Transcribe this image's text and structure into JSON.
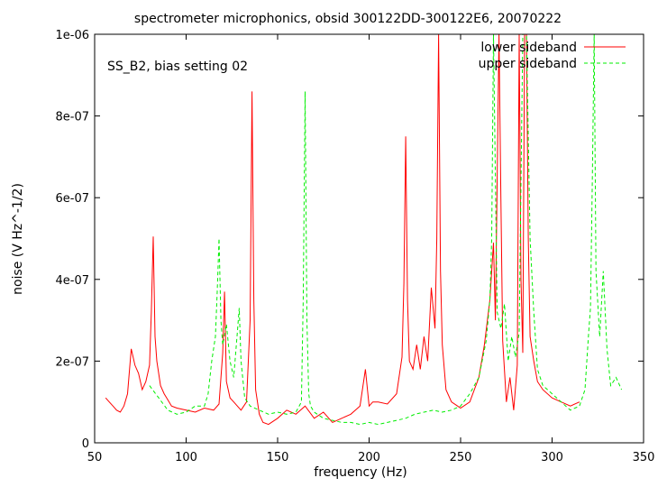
{
  "chart_data": {
    "type": "line",
    "title": "spectrometer microphonics, obsid 300122DD-300122E6, 20070222",
    "xlabel": "frequency (Hz)",
    "ylabel": "noise (V Hz^-1/2)",
    "xlim": [
      50,
      350
    ],
    "ylim": [
      0,
      1e-06
    ],
    "x_ticks": [
      50,
      100,
      150,
      200,
      250,
      300,
      350
    ],
    "y_ticks": [
      0,
      2e-07,
      4e-07,
      6e-07,
      8e-07,
      1e-06
    ],
    "x_tick_labels": [
      "50",
      "100",
      "150",
      "200",
      "250",
      "300",
      "350"
    ],
    "y_tick_labels": [
      "0",
      "2e-07",
      "4e-07",
      "6e-07",
      "8e-07",
      "1e-06"
    ],
    "grid": false,
    "legend_position": "top-right",
    "annotation": "SS_B2, bias setting 02",
    "series": [
      {
        "name": "lower sideband",
        "color": "#ff0000",
        "dash": "solid",
        "x": [
          56,
          58,
          60,
          62,
          64,
          66,
          68,
          70,
          72,
          74,
          76,
          78,
          80,
          81,
          82,
          83,
          84,
          86,
          88,
          90,
          92,
          95,
          100,
          105,
          110,
          115,
          118,
          120,
          121,
          122,
          124,
          126,
          128,
          130,
          133,
          135,
          136,
          137,
          138,
          140,
          142,
          145,
          150,
          155,
          160,
          165,
          170,
          175,
          180,
          185,
          190,
          195,
          198,
          200,
          202,
          205,
          210,
          215,
          218,
          219,
          220,
          221,
          222,
          224,
          226,
          228,
          230,
          232,
          234,
          236,
          237,
          238,
          239,
          240,
          242,
          245,
          250,
          255,
          260,
          263,
          266,
          268,
          269,
          270,
          271,
          272,
          273,
          275,
          277,
          279,
          281,
          282,
          283,
          284,
          285,
          286,
          287,
          288,
          290,
          292,
          295,
          300,
          305,
          310,
          315
        ],
        "y": [
          1.1e-07,
          1e-07,
          9e-08,
          8e-08,
          7.5e-08,
          9e-08,
          1.2e-07,
          2.3e-07,
          1.9e-07,
          1.7e-07,
          1.3e-07,
          1.5e-07,
          1.9e-07,
          3.2e-07,
          5.05e-07,
          2.6e-07,
          2e-07,
          1.4e-07,
          1.2e-07,
          1.05e-07,
          9e-08,
          8.5e-08,
          8e-08,
          7.5e-08,
          8.5e-08,
          8e-08,
          9.5e-08,
          2.2e-07,
          3.7e-07,
          1.5e-07,
          1.1e-07,
          1e-07,
          9e-08,
          8e-08,
          1e-07,
          3e-07,
          8.6e-07,
          3.5e-07,
          1.3e-07,
          7e-08,
          5e-08,
          4.5e-08,
          6e-08,
          8e-08,
          7e-08,
          9e-08,
          6e-08,
          7.5e-08,
          5e-08,
          6e-08,
          7e-08,
          9e-08,
          1.8e-07,
          9e-08,
          1e-07,
          1e-07,
          9.5e-08,
          1.2e-07,
          2.1e-07,
          3.9e-07,
          7.5e-07,
          3.5e-07,
          2e-07,
          1.8e-07,
          2.4e-07,
          1.8e-07,
          2.6e-07,
          2e-07,
          3.8e-07,
          2.8e-07,
          5e-07,
          1e-06,
          4.2e-07,
          2.4e-07,
          1.3e-07,
          1e-07,
          8.5e-08,
          1e-07,
          1.6e-07,
          2.4e-07,
          3.5e-07,
          4.9e-07,
          3e-07,
          6.5e-07,
          1e-06,
          6e-07,
          2.5e-07,
          1e-07,
          1.6e-07,
          8e-08,
          1.9e-07,
          1e-06,
          4e-07,
          2.2e-07,
          1e-06,
          1e-06,
          5e-07,
          2.6e-07,
          2e-07,
          1.5e-07,
          1.3e-07,
          1.1e-07,
          1e-07,
          9e-08,
          1e-07
        ]
      },
      {
        "name": "upper sideband",
        "color": "#00ee00",
        "dash": "4,3",
        "x": [
          80,
          85,
          90,
          95,
          100,
          105,
          110,
          112,
          114,
          116,
          117,
          118,
          119,
          120,
          122,
          124,
          126,
          128,
          129,
          130,
          132,
          135,
          140,
          145,
          150,
          155,
          160,
          163,
          164,
          165,
          166,
          167,
          168,
          170,
          175,
          180,
          185,
          190,
          195,
          200,
          205,
          210,
          215,
          220,
          225,
          230,
          235,
          240,
          245,
          250,
          255,
          260,
          264,
          266,
          267,
          268,
          269,
          270,
          272,
          274,
          276,
          278,
          280,
          282,
          284,
          286,
          288,
          290,
          292,
          295,
          300,
          305,
          310,
          315,
          318,
          320,
          321,
          322,
          323,
          324,
          326,
          328,
          330,
          332,
          335,
          338
        ],
        "y": [
          1.4e-07,
          1.1e-07,
          8e-08,
          7e-08,
          7.5e-08,
          9e-08,
          9e-08,
          1.2e-07,
          2e-07,
          2.6e-07,
          3.7e-07,
          5e-07,
          3e-07,
          2.4e-07,
          2.9e-07,
          2e-07,
          1.6e-07,
          2.7e-07,
          3.3e-07,
          2e-07,
          1.1e-07,
          9e-08,
          8e-08,
          7e-08,
          7.5e-08,
          7e-08,
          7.5e-08,
          1e-07,
          3.5e-07,
          8.6e-07,
          3e-07,
          1.2e-07,
          9e-08,
          7.5e-08,
          6e-08,
          5.5e-08,
          5e-08,
          5e-08,
          4.5e-08,
          5e-08,
          4.5e-08,
          5e-08,
          5.5e-08,
          6e-08,
          7e-08,
          7.5e-08,
          8e-08,
          7.5e-08,
          8e-08,
          9e-08,
          1.2e-07,
          1.6e-07,
          2.5e-07,
          3.5e-07,
          5e-07,
          1e-06,
          6.5e-07,
          3.2e-07,
          2.8e-07,
          3.4e-07,
          2e-07,
          2.6e-07,
          2.1e-07,
          2.7e-07,
          1e-06,
          1e-06,
          5e-07,
          3.2e-07,
          1.8e-07,
          1.4e-07,
          1.2e-07,
          1e-07,
          8e-08,
          9e-08,
          1.3e-07,
          2.7e-07,
          3.3e-07,
          6.5e-07,
          1e-06,
          4.2e-07,
          2.6e-07,
          4.2e-07,
          2.3e-07,
          1.4e-07,
          1.6e-07,
          1.3e-07
        ]
      }
    ]
  }
}
